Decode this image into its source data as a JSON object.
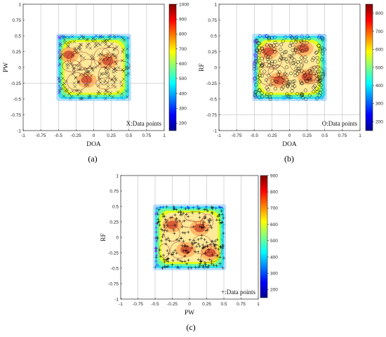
{
  "chart_data": [
    {
      "id": "a",
      "type": "scatter",
      "panel_label": "(a)",
      "xlabel": "DOA",
      "ylabel": "PW",
      "xlim": [
        -1,
        1
      ],
      "ylim": [
        -1,
        1
      ],
      "ticks": [
        -1,
        -0.75,
        -0.5,
        -0.25,
        0,
        0.25,
        0.5,
        0.75,
        1
      ],
      "points_region": {
        "x": [
          -0.5,
          0.5
        ],
        "y": [
          -0.5,
          0.5
        ]
      },
      "marker": "x",
      "legend_text": "X:Data points",
      "colorbar": {
        "min": 150,
        "max": 1000,
        "ticks": [
          200,
          300,
          400,
          500,
          600,
          700,
          800,
          900,
          1000
        ]
      },
      "hot_spots": [
        {
          "x": -0.35,
          "y": 0.2
        },
        {
          "x": 0.2,
          "y": 0.1
        },
        {
          "x": -0.1,
          "y": -0.2
        }
      ]
    },
    {
      "id": "b",
      "type": "scatter",
      "panel_label": "(b)",
      "xlabel": "DOA",
      "ylabel": "RF",
      "xlim": [
        -1,
        1
      ],
      "ylim": [
        -1,
        1
      ],
      "ticks": [
        -1,
        -0.75,
        -0.5,
        -0.25,
        0,
        0.25,
        0.5,
        0.75,
        1
      ],
      "points_region": {
        "x": [
          -0.5,
          0.5
        ],
        "y": [
          -0.5,
          0.5
        ]
      },
      "marker": "o",
      "legend_text": "O:Data points",
      "colorbar": {
        "min": 150,
        "max": 850,
        "ticks": [
          200,
          300,
          400,
          500,
          600,
          700,
          800
        ]
      },
      "hot_spots": [
        {
          "x": -0.3,
          "y": 0.25
        },
        {
          "x": 0.2,
          "y": 0.3
        },
        {
          "x": -0.15,
          "y": -0.2
        },
        {
          "x": 0.25,
          "y": -0.15
        }
      ]
    },
    {
      "id": "c",
      "type": "scatter",
      "panel_label": "(c)",
      "xlabel": "PW",
      "ylabel": "RF",
      "xlim": [
        -1,
        1
      ],
      "ylim": [
        -1,
        1
      ],
      "ticks": [
        -1,
        -0.75,
        -0.5,
        -0.25,
        0,
        0.25,
        0.5,
        0.75,
        1
      ],
      "points_region": {
        "x": [
          -0.5,
          0.5
        ],
        "y": [
          -0.5,
          0.5
        ]
      },
      "marker": "+",
      "legend_text": "+:Data points",
      "colorbar": {
        "min": 150,
        "max": 900,
        "ticks": [
          200,
          300,
          400,
          500,
          600,
          700,
          800,
          900
        ]
      },
      "hot_spots": [
        {
          "x": -0.25,
          "y": 0.2
        },
        {
          "x": 0.15,
          "y": 0.15
        },
        {
          "x": -0.05,
          "y": -0.2
        },
        {
          "x": 0.3,
          "y": -0.25
        }
      ]
    }
  ],
  "colors": {
    "jet": [
      "#00008f",
      "#0000ff",
      "#0080ff",
      "#00ffff",
      "#80ff80",
      "#ffff00",
      "#ff8000",
      "#ff0000",
      "#800000"
    ],
    "grid": "#b0b0b0",
    "marker": "#000000"
  }
}
